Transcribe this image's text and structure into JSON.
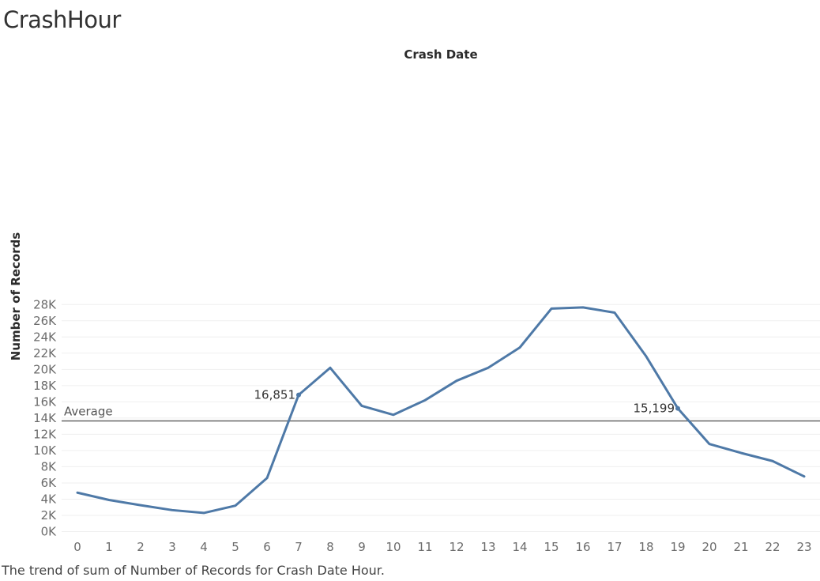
{
  "title": "CrashHour",
  "caption": "The trend of sum of Number of Records for Crash Date Hour.",
  "colors": {
    "line": "#4e79a7",
    "reference_line": "#666666",
    "gridline": "#efefef"
  },
  "chart_data": {
    "type": "line",
    "title": "Crash Date",
    "xlabel": "",
    "ylabel": "Number of Records",
    "x": [
      0,
      1,
      2,
      3,
      4,
      5,
      6,
      7,
      8,
      9,
      10,
      11,
      12,
      13,
      14,
      15,
      16,
      17,
      18,
      19,
      20,
      21,
      22,
      23
    ],
    "y_ticks": [
      "0K",
      "2K",
      "4K",
      "6K",
      "8K",
      "10K",
      "12K",
      "14K",
      "16K",
      "18K",
      "20K",
      "22K",
      "24K",
      "26K",
      "28K"
    ],
    "ylim": [
      0,
      28000
    ],
    "grid": true,
    "series": [
      {
        "values": [
          4800,
          3900,
          3250,
          2650,
          2300,
          3200,
          6600,
          16851,
          20200,
          15500,
          14400,
          16200,
          18600,
          20200,
          22700,
          27500,
          27650,
          27000,
          21600,
          15199,
          10800,
          9700,
          8700,
          6800
        ]
      }
    ],
    "reference_line": {
      "label": "Average",
      "value": 13650
    },
    "annotations": [
      {
        "x": 7,
        "value": 16851,
        "text": "16,851"
      },
      {
        "x": 19,
        "value": 15199,
        "text": "15,199"
      }
    ]
  }
}
